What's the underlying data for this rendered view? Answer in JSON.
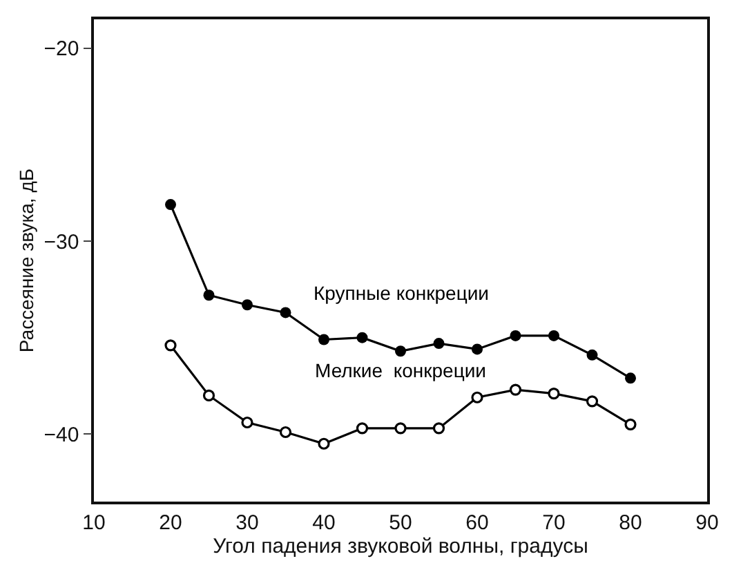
{
  "chart_data": {
    "type": "line",
    "xlabel": "Угол падения звуковой волны, градусы",
    "ylabel": "Рассеяние звука, дБ",
    "x": [
      20,
      25,
      30,
      35,
      40,
      45,
      50,
      55,
      60,
      65,
      70,
      75,
      80
    ],
    "series": [
      {
        "name": "Крупные конкреции",
        "color": "#000000",
        "marker": "circle",
        "values": [
          -28.1,
          -32.8,
          -33.3,
          -33.7,
          -35.1,
          -35.0,
          -35.7,
          -35.3,
          -35.6,
          -34.9,
          -34.9,
          -35.9,
          -37.1
        ]
      },
      {
        "name": "Мелкие  конкреции",
        "color": "#000000",
        "marker": "open-circle",
        "values": [
          -35.4,
          -38.0,
          -39.4,
          -39.9,
          -40.5,
          -39.7,
          -39.7,
          -39.7,
          -38.1,
          -37.7,
          -37.9,
          -38.3,
          -39.5
        ]
      }
    ],
    "xlim": [
      10,
      90
    ],
    "xticks": [
      10,
      20,
      30,
      40,
      50,
      60,
      70,
      80,
      90
    ],
    "ylim": [
      -43.5,
      -18.5
    ],
    "yticks": [
      {
        "value": -20,
        "label": "−20"
      },
      {
        "value": -30,
        "label": "−30"
      },
      {
        "value": -40,
        "label": "−40"
      }
    ],
    "grid": false,
    "legend": false
  }
}
